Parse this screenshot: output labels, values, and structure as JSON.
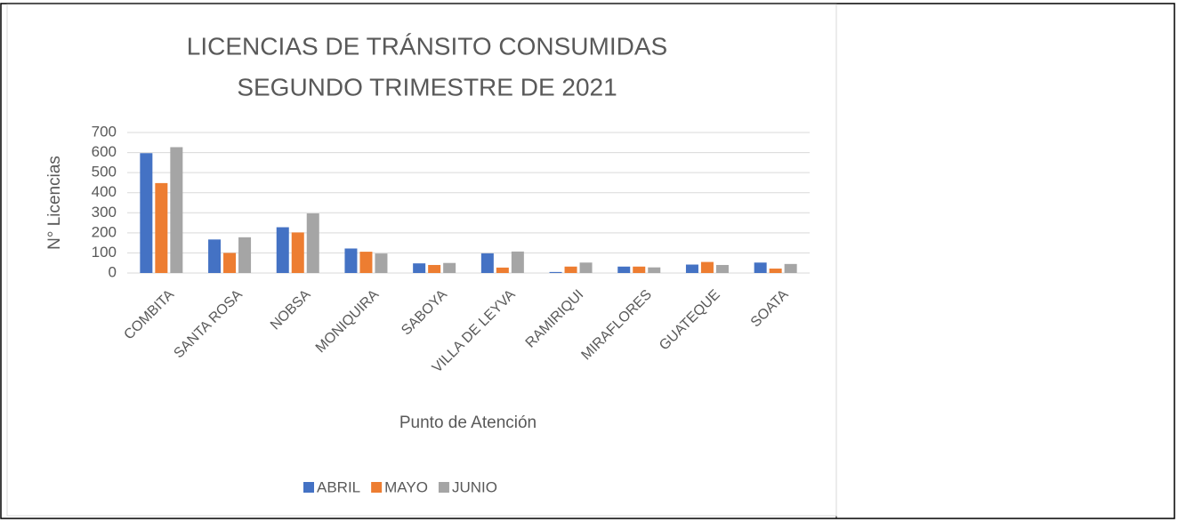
{
  "chart_data": {
    "type": "bar",
    "title": [
      "LICENCIAS DE TRÁNSITO CONSUMIDAS",
      "SEGUNDO TRIMESTRE DE 2021"
    ],
    "x_label": "Punto de Atención",
    "y_label": "N° Licencias",
    "categories": [
      "COMBITA",
      "SANTA ROSA",
      "NOBSA",
      "MONIQUIRA",
      "SABOYA",
      "VILLA DE LEYVA",
      "RAMIRIQUI",
      "MIRAFLORES",
      "GUATEQUE",
      "SOATA"
    ],
    "series": [
      {
        "name": "ABRIL",
        "color": "#4472c4",
        "values": [
          597,
          167,
          228,
          122,
          48,
          98,
          5,
          32,
          42,
          52
        ]
      },
      {
        "name": "MAYO",
        "color": "#ed7d31",
        "values": [
          448,
          100,
          202,
          106,
          40,
          27,
          32,
          32,
          55,
          22
        ]
      },
      {
        "name": "JUNIO",
        "color": "#a5a5a5",
        "values": [
          627,
          178,
          297,
          97,
          50,
          107,
          52,
          28,
          40,
          45
        ]
      }
    ],
    "ylim": [
      0,
      700
    ],
    "yticks": [
      0,
      100,
      200,
      300,
      400,
      500,
      600,
      700
    ],
    "grid": true,
    "legend": "bottom"
  }
}
